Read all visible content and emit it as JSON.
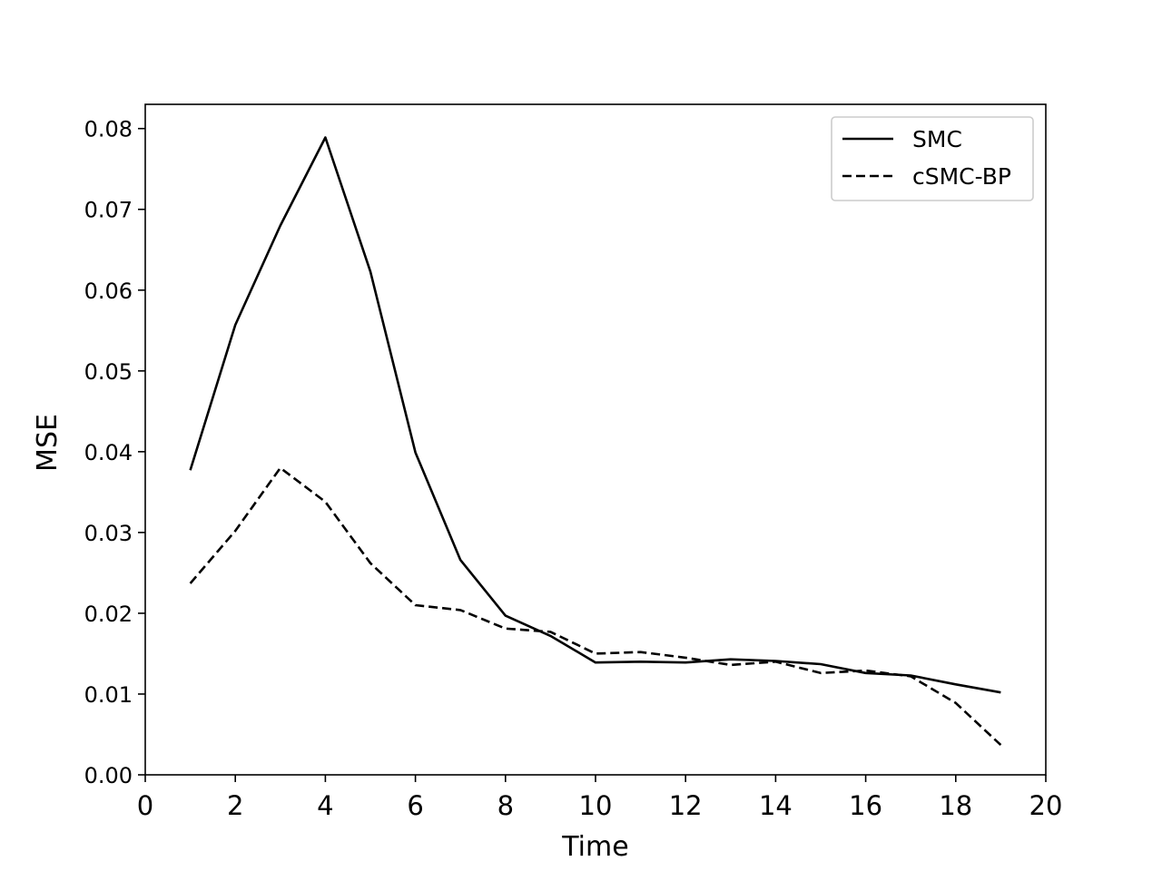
{
  "chart_data": {
    "type": "line",
    "title": "",
    "xlabel": "Time",
    "ylabel": "MSE",
    "xlim": [
      0,
      20
    ],
    "ylim": [
      0,
      0.083
    ],
    "xticks": [
      "0",
      "2",
      "4",
      "6",
      "8",
      "10",
      "12",
      "14",
      "16",
      "18",
      "20"
    ],
    "yticks": [
      "0.00",
      "0.01",
      "0.02",
      "0.03",
      "0.04",
      "0.05",
      "0.06",
      "0.07",
      "0.08"
    ],
    "grid": false,
    "legend_position": "top-right",
    "x": [
      1,
      2,
      3,
      4,
      5,
      6,
      7,
      8,
      9,
      10,
      11,
      12,
      13,
      14,
      15,
      16,
      17,
      18,
      19
    ],
    "series": [
      {
        "name": "SMC",
        "style": "solid",
        "color": "#000000",
        "values": [
          0.0377,
          0.0557,
          0.068,
          0.0789,
          0.0623,
          0.0399,
          0.0266,
          0.0197,
          0.0172,
          0.0139,
          0.014,
          0.0139,
          0.0143,
          0.0141,
          0.0137,
          0.0126,
          0.0123,
          0.0112,
          0.0102
        ]
      },
      {
        "name": "cSMC-BP",
        "style": "dashed",
        "color": "#000000",
        "values": [
          0.0237,
          0.0302,
          0.038,
          0.0338,
          0.0262,
          0.021,
          0.0204,
          0.0181,
          0.0177,
          0.015,
          0.0152,
          0.0145,
          0.0136,
          0.014,
          0.0126,
          0.0129,
          0.0122,
          0.0089,
          0.0037
        ]
      }
    ]
  }
}
